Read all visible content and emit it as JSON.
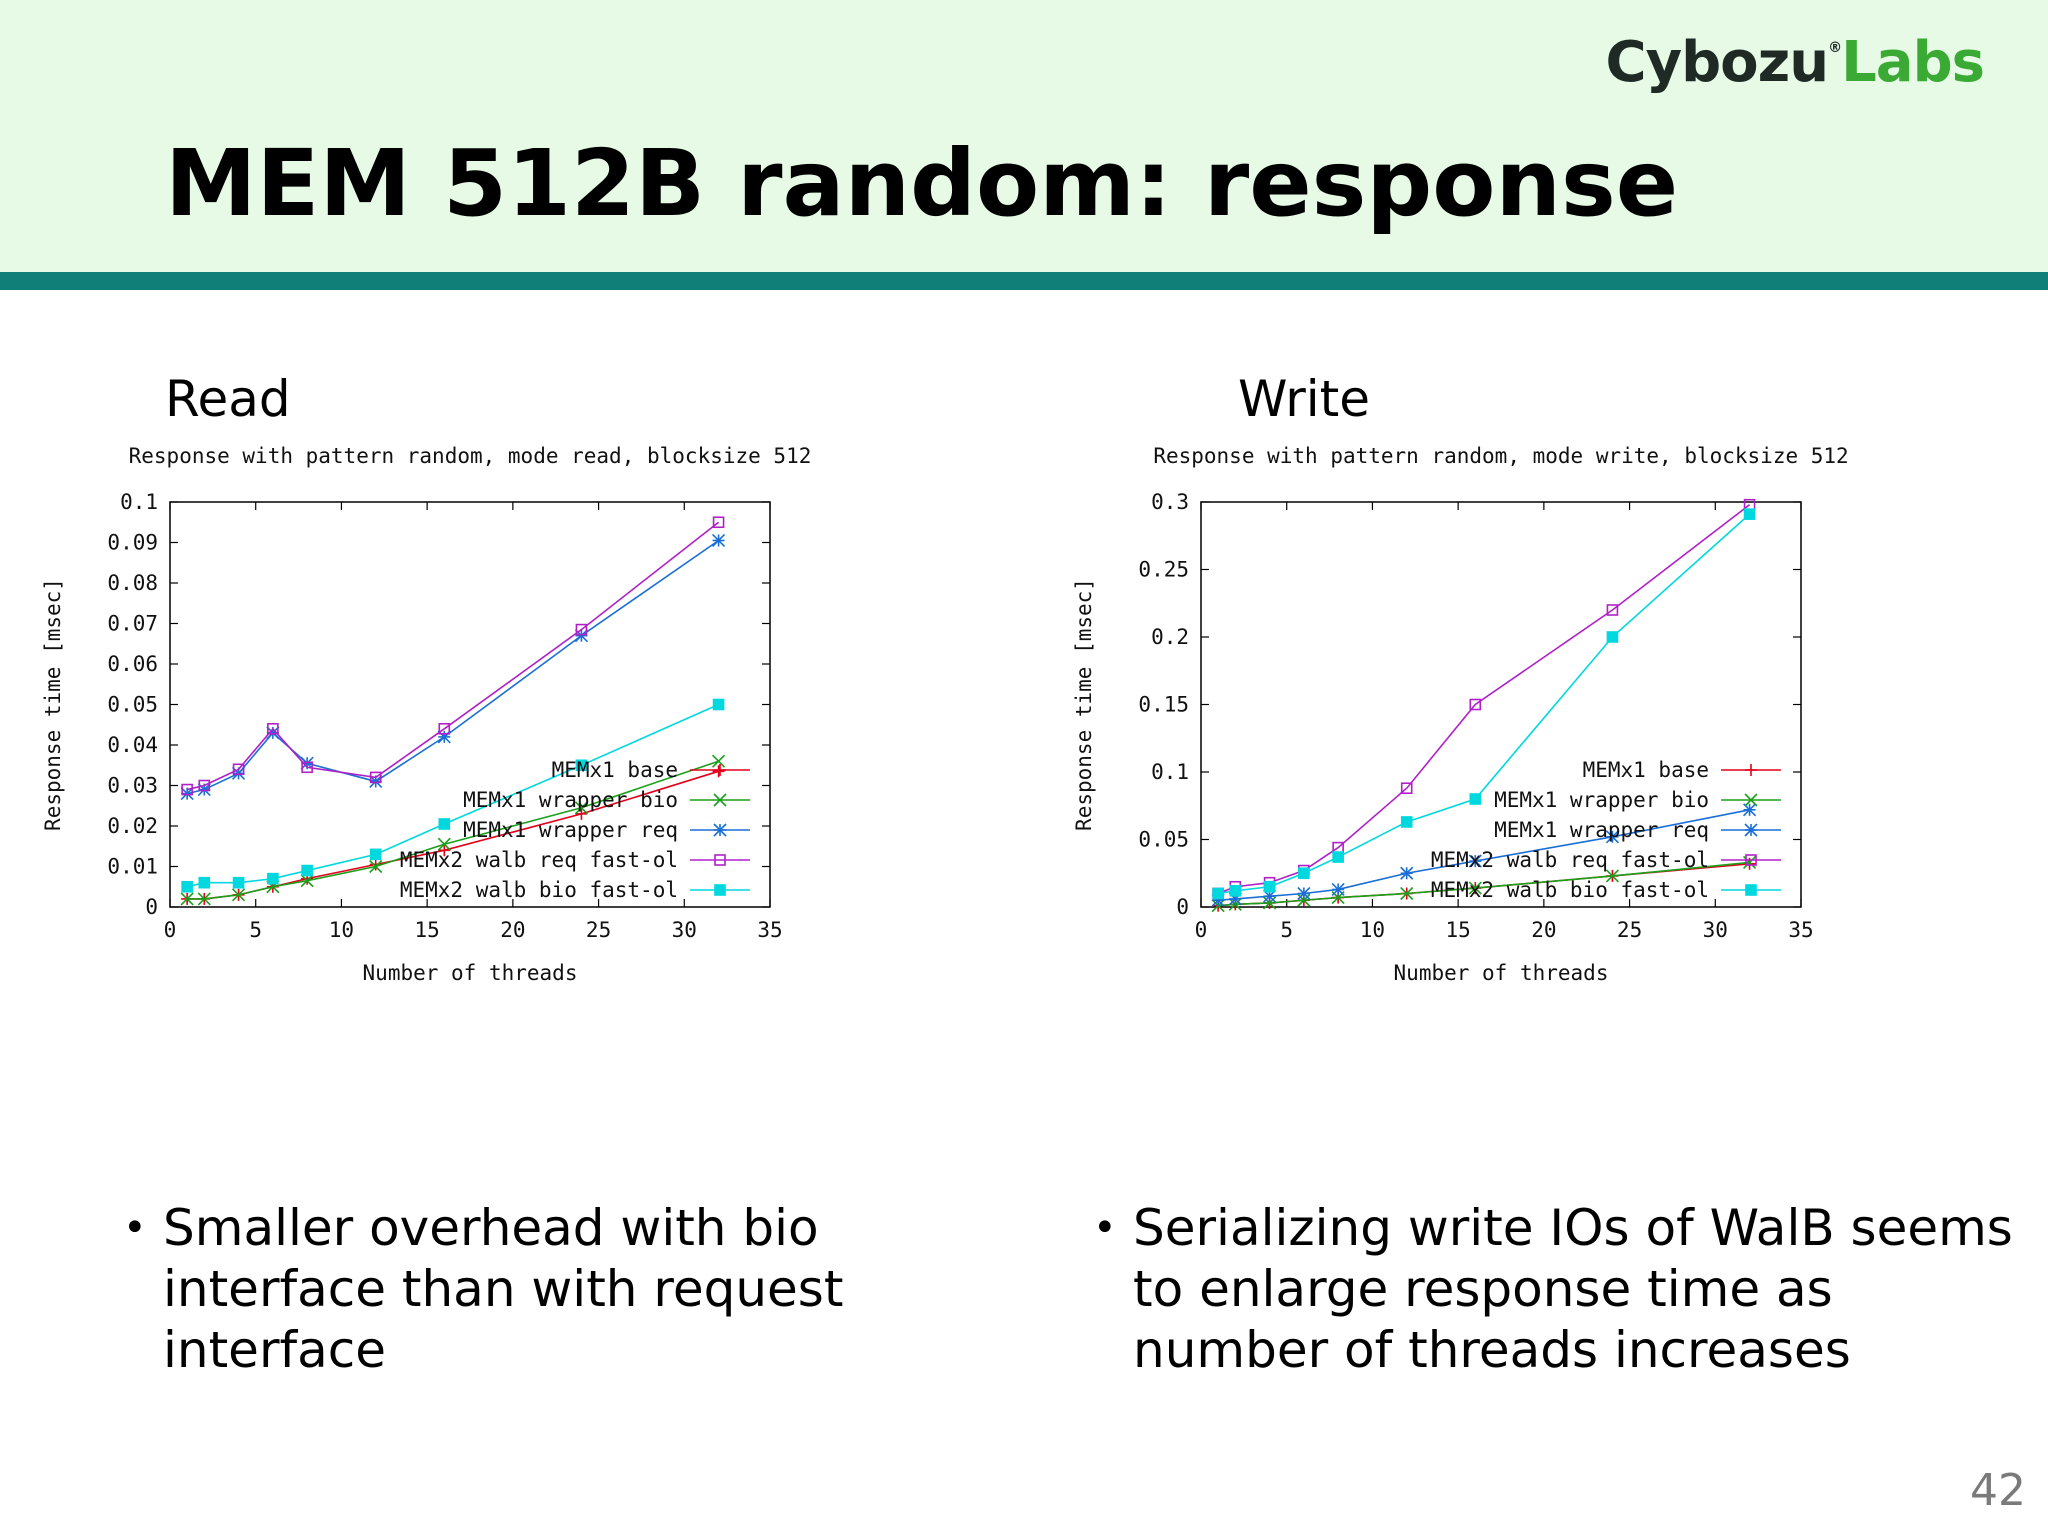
{
  "slide": {
    "title": "MEM 512B random: response",
    "logo_part1": "Cybozu",
    "logo_mark": "®",
    "logo_part2": "Labs",
    "page_number": "42",
    "colors": {
      "header_bg": "#e6fae6",
      "header_bar": "#0f7f78",
      "logo_green": "#3aaa35"
    }
  },
  "panels": [
    {
      "label": "Read",
      "bullet": "Smaller overhead with bio interface than with request interface"
    },
    {
      "label": "Write",
      "bullet": "Serializing write IOs of WalB seems to enlarge response time as number of threads increases"
    }
  ],
  "chart_data": [
    {
      "type": "line",
      "title": "Response with pattern random, mode read, blocksize 512",
      "xlabel": "Number of threads",
      "ylabel": "Response time [msec]",
      "xlim": [
        0,
        35
      ],
      "ylim": [
        0,
        0.1
      ],
      "xticks": [
        "0",
        "5",
        "10",
        "15",
        "20",
        "25",
        "30",
        "35"
      ],
      "yticks": [
        "0",
        "0.01",
        "0.02",
        "0.03",
        "0.04",
        "0.05",
        "0.06",
        "0.07",
        "0.08",
        "0.09",
        "0.1"
      ],
      "legend_position": "bottom-right",
      "grid": false,
      "series": [
        {
          "name": "MEMx1 base",
          "color": "#e2001a",
          "marker": "plus",
          "x": [
            1,
            2,
            4,
            6,
            8,
            12,
            16,
            24,
            32
          ],
          "y": [
            0.002,
            0.002,
            0.003,
            0.005,
            0.007,
            0.0105,
            0.014,
            0.023,
            0.0335
          ]
        },
        {
          "name": "MEMx1 wrapper bio",
          "color": "#1aa01a",
          "marker": "cross",
          "x": [
            1,
            2,
            4,
            6,
            8,
            12,
            16,
            24,
            32
          ],
          "y": [
            0.002,
            0.002,
            0.003,
            0.005,
            0.0065,
            0.01,
            0.0155,
            0.0245,
            0.036
          ]
        },
        {
          "name": "MEMx1 wrapper req",
          "color": "#1a6fd6",
          "marker": "star",
          "x": [
            1,
            2,
            4,
            6,
            8,
            12,
            16,
            24,
            32
          ],
          "y": [
            0.028,
            0.029,
            0.033,
            0.043,
            0.0355,
            0.031,
            0.042,
            0.067,
            0.0905
          ]
        },
        {
          "name": "MEMx2 walb req fast-ol",
          "color": "#b020c8",
          "marker": "square-open",
          "x": [
            1,
            2,
            4,
            6,
            8,
            12,
            16,
            24,
            32
          ],
          "y": [
            0.029,
            0.03,
            0.034,
            0.044,
            0.0345,
            0.032,
            0.044,
            0.0685,
            0.095
          ]
        },
        {
          "name": "MEMx2 walb bio fast-ol",
          "color": "#00d8e0",
          "marker": "square-filled",
          "x": [
            1,
            2,
            4,
            6,
            8,
            12,
            16,
            24,
            32
          ],
          "y": [
            0.005,
            0.006,
            0.006,
            0.007,
            0.009,
            0.013,
            0.0205,
            0.035,
            0.05
          ]
        }
      ]
    },
    {
      "type": "line",
      "title": "Response with pattern random, mode write, blocksize 512",
      "xlabel": "Number of threads",
      "ylabel": "Response time [msec]",
      "xlim": [
        0,
        35
      ],
      "ylim": [
        0,
        0.3
      ],
      "xticks": [
        "0",
        "5",
        "10",
        "15",
        "20",
        "25",
        "30",
        "35"
      ],
      "yticks": [
        "0",
        "0.05",
        "0.1",
        "0.15",
        "0.2",
        "0.25",
        "0.3"
      ],
      "legend_position": "bottom-right",
      "grid": false,
      "series": [
        {
          "name": "MEMx1 base",
          "color": "#e2001a",
          "marker": "plus",
          "x": [
            1,
            2,
            4,
            6,
            8,
            12,
            16,
            24,
            32
          ],
          "y": [
            0.001,
            0.002,
            0.003,
            0.005,
            0.007,
            0.01,
            0.014,
            0.023,
            0.032
          ]
        },
        {
          "name": "MEMx1 wrapper bio",
          "color": "#1aa01a",
          "marker": "cross",
          "x": [
            1,
            2,
            4,
            6,
            8,
            12,
            16,
            24,
            32
          ],
          "y": [
            0.001,
            0.002,
            0.003,
            0.005,
            0.007,
            0.01,
            0.014,
            0.023,
            0.033
          ]
        },
        {
          "name": "MEMx1 wrapper req",
          "color": "#1a6fd6",
          "marker": "star",
          "x": [
            1,
            2,
            4,
            6,
            8,
            12,
            16,
            24,
            32
          ],
          "y": [
            0.005,
            0.006,
            0.008,
            0.01,
            0.013,
            0.025,
            0.034,
            0.052,
            0.072
          ]
        },
        {
          "name": "MEMx2 walb req fast-ol",
          "color": "#b020c8",
          "marker": "square-open",
          "x": [
            1,
            2,
            4,
            6,
            8,
            12,
            16,
            24,
            32
          ],
          "y": [
            0.01,
            0.015,
            0.018,
            0.027,
            0.044,
            0.088,
            0.15,
            0.22,
            0.298
          ]
        },
        {
          "name": "MEMx2 walb bio fast-ol",
          "color": "#00d8e0",
          "marker": "square-filled",
          "x": [
            1,
            2,
            4,
            6,
            8,
            12,
            16,
            24,
            32
          ],
          "y": [
            0.01,
            0.012,
            0.015,
            0.025,
            0.037,
            0.063,
            0.08,
            0.2,
            0.291
          ]
        }
      ]
    }
  ]
}
